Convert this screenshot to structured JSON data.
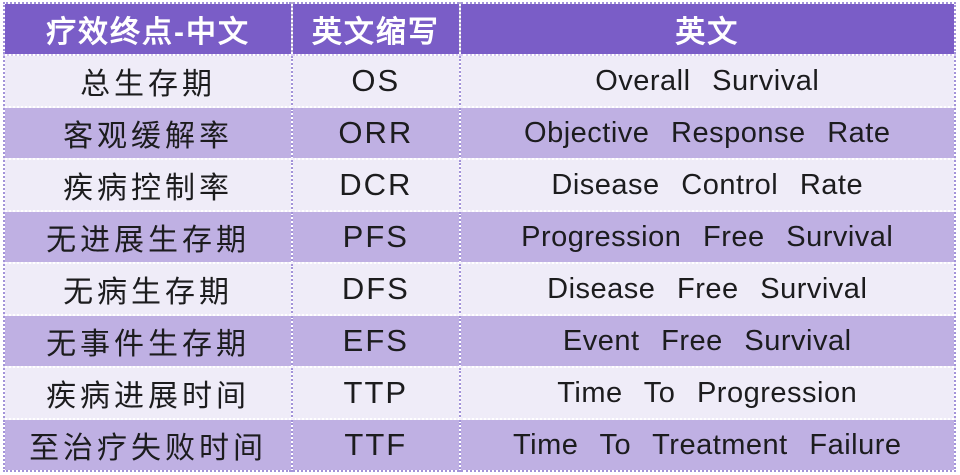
{
  "colors": {
    "header_bg": "#7a5dc7",
    "header_text": "#ffffff",
    "row_light": "#efecf8",
    "row_dark": "#bfb0e3",
    "body_text": "#1c1c1e",
    "border_purple": "#a393d9"
  },
  "table": {
    "columns": [
      {
        "key": "cn",
        "label": "疗效终点-中文"
      },
      {
        "key": "abbr",
        "label": "英文缩写"
      },
      {
        "key": "en",
        "label": "英文"
      }
    ],
    "rows": [
      {
        "cn": "总生存期",
        "abbr": "OS",
        "en": "Overall Survival"
      },
      {
        "cn": "客观缓解率",
        "abbr": "ORR",
        "en": "Objective Response Rate"
      },
      {
        "cn": "疾病控制率",
        "abbr": "DCR",
        "en": "Disease Control Rate"
      },
      {
        "cn": "无进展生存期",
        "abbr": "PFS",
        "en": "Progression Free Survival"
      },
      {
        "cn": "无病生存期",
        "abbr": "DFS",
        "en": "Disease Free Survival"
      },
      {
        "cn": "无事件生存期",
        "abbr": "EFS",
        "en": "Event Free Survival"
      },
      {
        "cn": "疾病进展时间",
        "abbr": "TTP",
        "en": "Time To Progression"
      },
      {
        "cn": "至治疗失败时间",
        "abbr": "TTF",
        "en": "Time To Treatment Failure"
      }
    ]
  },
  "chart_data": {
    "type": "table",
    "title": "",
    "columns": [
      "疗效终点-中文",
      "英文缩写",
      "英文"
    ],
    "rows": [
      [
        "总生存期",
        "OS",
        "Overall Survival"
      ],
      [
        "客观缓解率",
        "ORR",
        "Objective Response Rate"
      ],
      [
        "疾病控制率",
        "DCR",
        "Disease Control Rate"
      ],
      [
        "无进展生存期",
        "PFS",
        "Progression Free Survival"
      ],
      [
        "无病生存期",
        "DFS",
        "Disease Free Survival"
      ],
      [
        "无事件生存期",
        "EFS",
        "Event Free Survival"
      ],
      [
        "疾病进展时间",
        "TTP",
        "Time To Progression"
      ],
      [
        "至治疗失败时间",
        "TTF",
        "Time To Treatment Failure"
      ]
    ],
    "layout_hints": {
      "header_fill": "#7a5dc7",
      "alternating_row_fills": [
        "#efecf8",
        "#bfb0e3"
      ],
      "grid": "dotted"
    }
  }
}
